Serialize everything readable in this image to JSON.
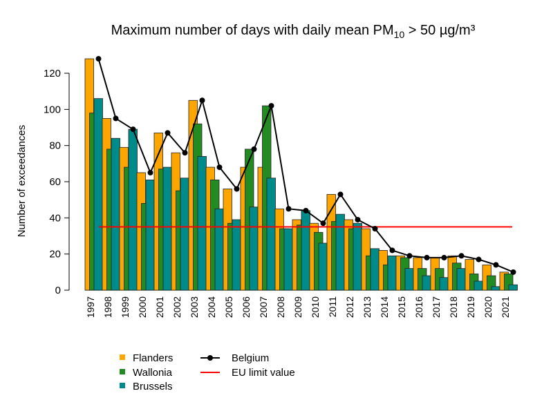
{
  "chart_data": {
    "type": "bar",
    "title": "Maximum number of days with daily mean PM10 > 50 µg/m³",
    "title_main": "Maximum number of days with daily mean PM",
    "title_sub": "10",
    "title_rest": " > 50 µg/m³",
    "ylabel": "Number of exceedances",
    "xlabel": "",
    "ylim": [
      0,
      130
    ],
    "yticks": [
      0,
      20,
      40,
      60,
      80,
      100,
      120
    ],
    "grid": false,
    "legend_placement": "bottom",
    "categories": [
      "1997",
      "1998",
      "1999",
      "2000",
      "2001",
      "2002",
      "2003",
      "2004",
      "2005",
      "2006",
      "2007",
      "2008",
      "2009",
      "2010",
      "2011",
      "2012",
      "2013",
      "2014",
      "2015",
      "2016",
      "2017",
      "2018",
      "2019",
      "2020",
      "2021"
    ],
    "series": [
      {
        "name": "Flanders",
        "type": "bar",
        "color": "#FFA500",
        "values": [
          128,
          95,
          79,
          65,
          87,
          76,
          105,
          68,
          56,
          68,
          68,
          45,
          39,
          37,
          53,
          39,
          34,
          22,
          19,
          18,
          18,
          19,
          17,
          14,
          10
        ]
      },
      {
        "name": "Wallonia",
        "type": "bar",
        "color": "#228B22",
        "values": [
          98,
          78,
          68,
          48,
          67,
          55,
          92,
          61,
          37,
          78,
          102,
          34,
          36,
          32,
          38,
          34,
          19,
          14,
          18,
          12,
          12,
          15,
          9,
          8,
          9
        ]
      },
      {
        "name": "Brussels",
        "type": "bar",
        "color": "#008B8B",
        "values": [
          106,
          84,
          89,
          61,
          68,
          62,
          74,
          45,
          39,
          46,
          62,
          34,
          44,
          26,
          42,
          37,
          23,
          19,
          12,
          8,
          7,
          12,
          5,
          2,
          3
        ]
      },
      {
        "name": "Belgium",
        "type": "line",
        "color": "#000000",
        "values": [
          128,
          95,
          89,
          65,
          87,
          76,
          105,
          68,
          56,
          78,
          102,
          45,
          44,
          37,
          53,
          39,
          34,
          22,
          19,
          18,
          18,
          19,
          17,
          14,
          10
        ]
      },
      {
        "name": "EU limit value",
        "type": "hline",
        "color": "#FF0000",
        "value": 35
      }
    ]
  }
}
